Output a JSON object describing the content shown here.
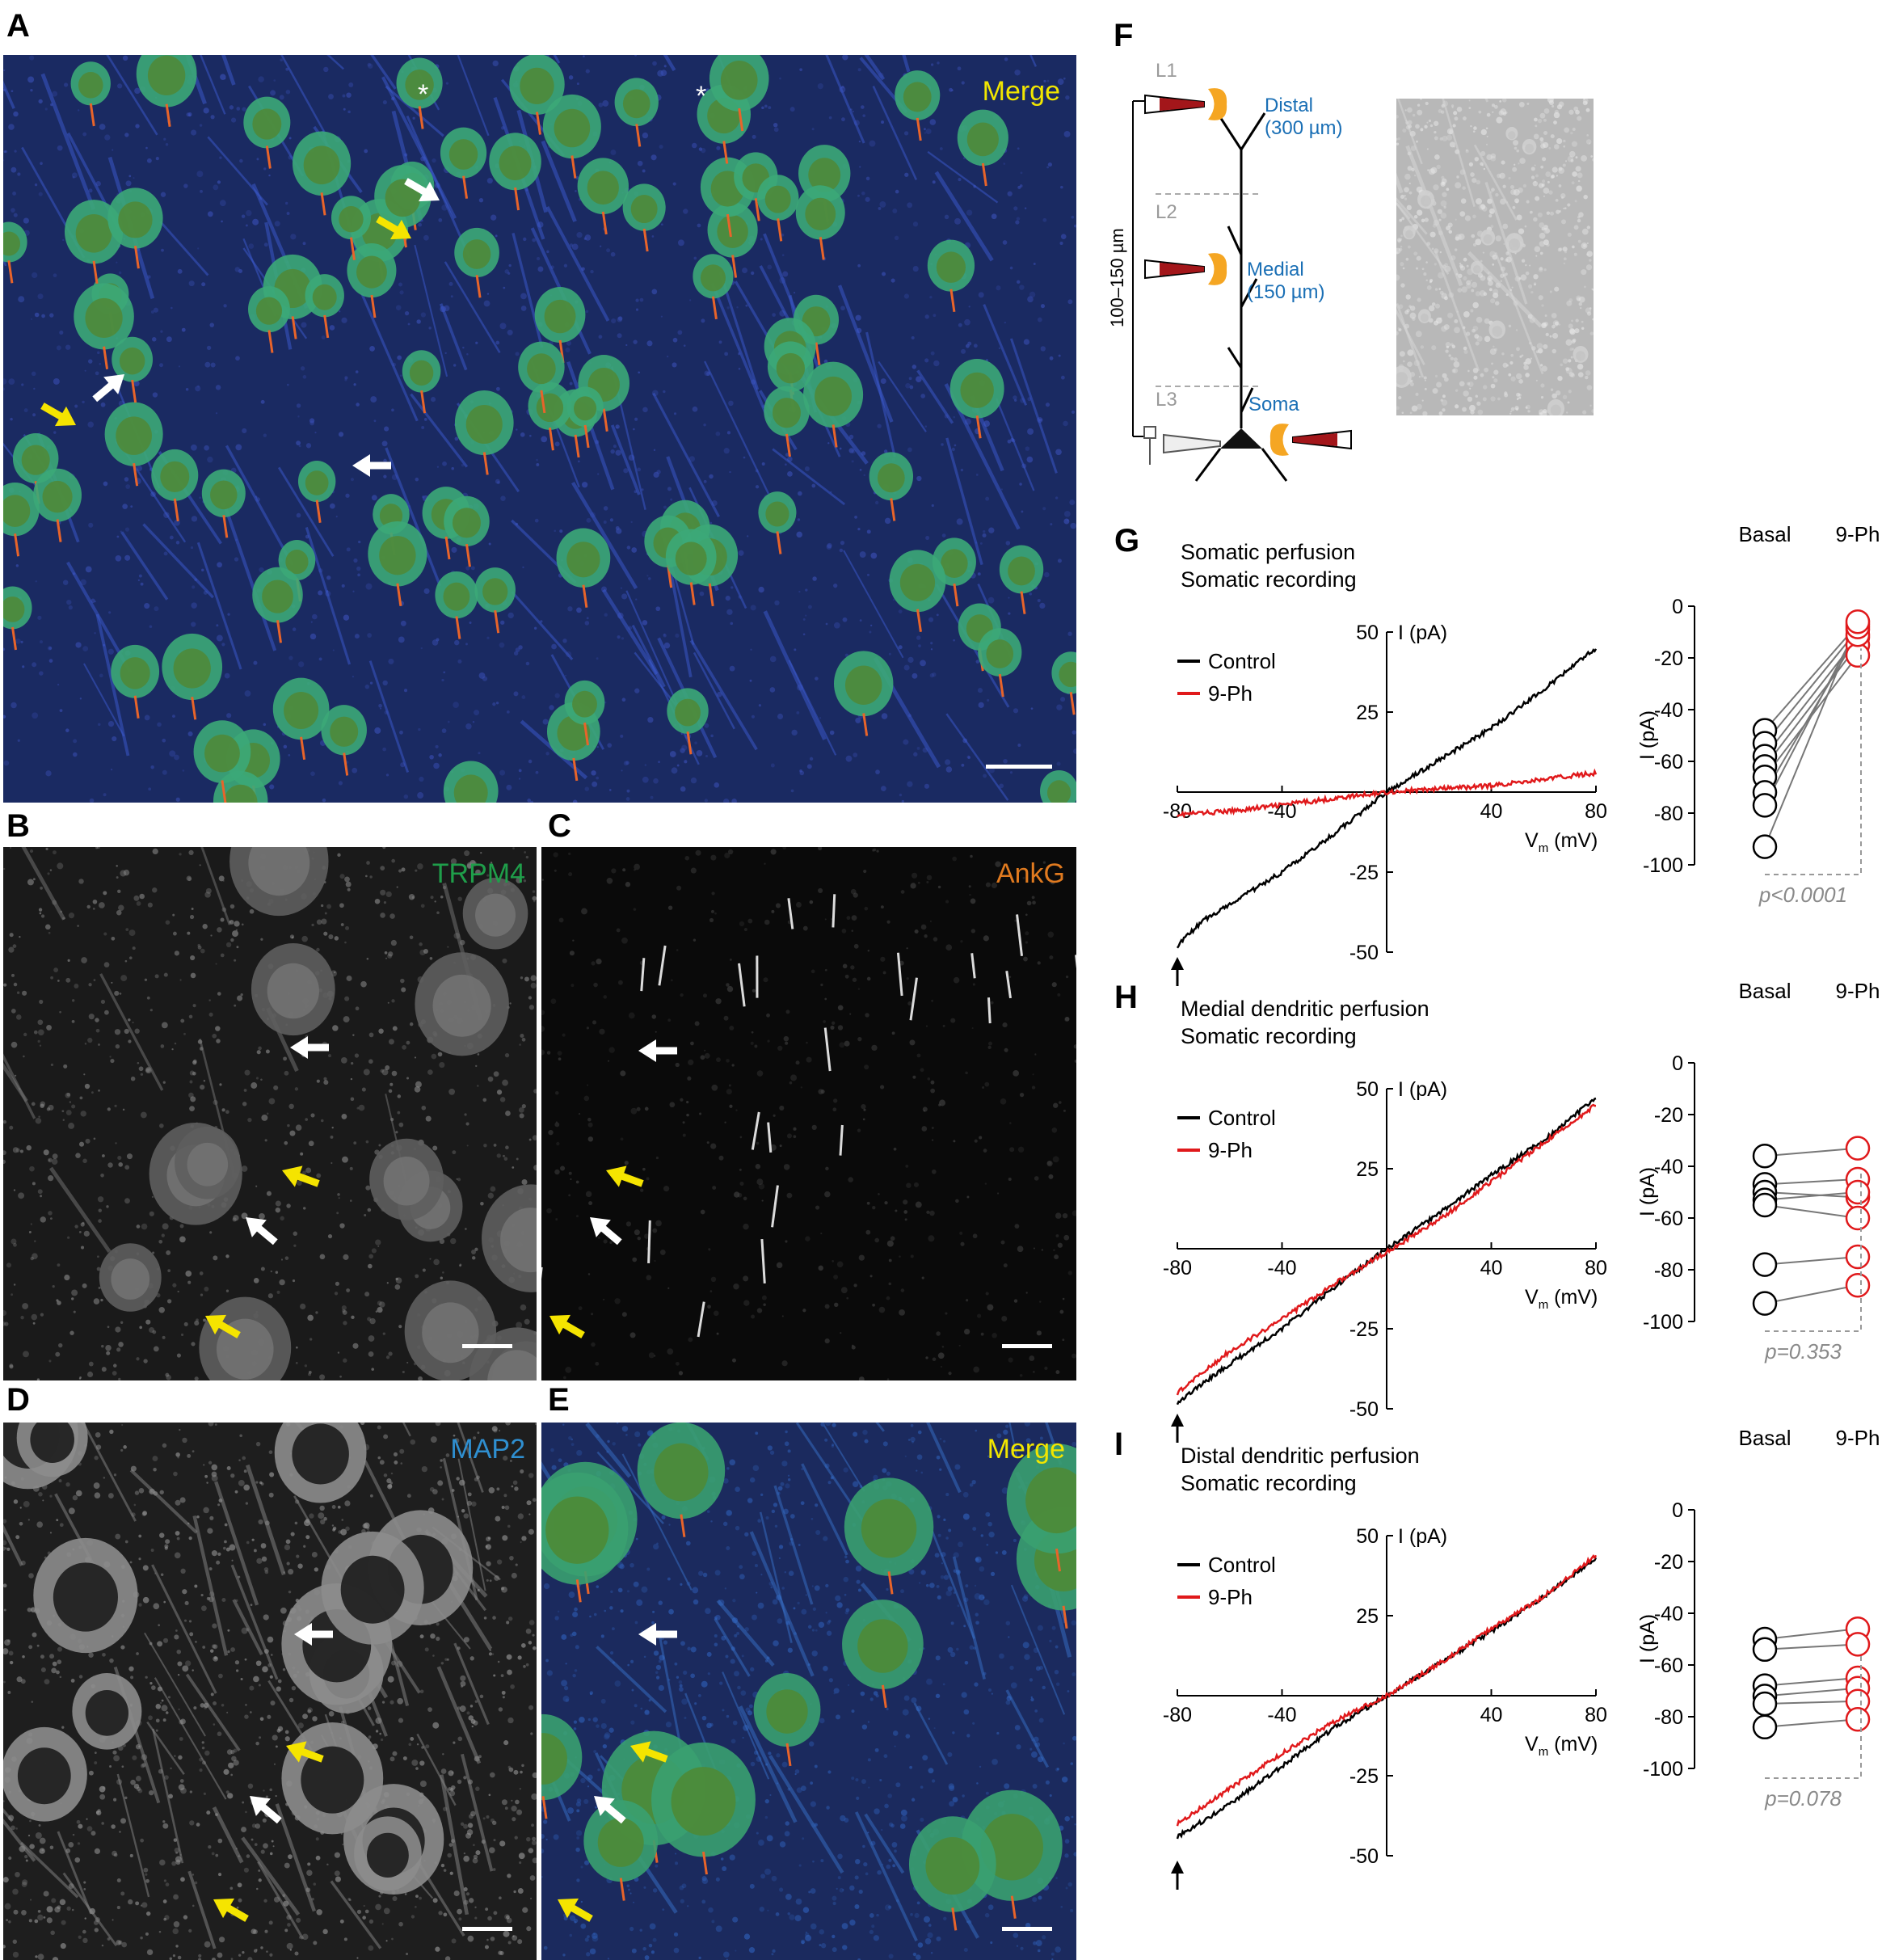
{
  "panels": {
    "A": {
      "letter": "A",
      "label": "Merge",
      "label_color": "#f2e600"
    },
    "B": {
      "letter": "B",
      "label": "TRPM4",
      "label_color": "#1f9e4a"
    },
    "C": {
      "letter": "C",
      "label": "AnkG",
      "label_color": "#e07a1f"
    },
    "D": {
      "letter": "D",
      "label": "MAP2",
      "label_color": "#2f8fd0"
    },
    "E": {
      "letter": "E",
      "label": "Merge",
      "label_color": "#f2e600"
    },
    "F": {
      "letter": "F",
      "layers": [
        "L1",
        "L2",
        "L3"
      ],
      "sites": [
        {
          "name": "Distal",
          "dist": "(300 µm)"
        },
        {
          "name": "Medial",
          "dist": "(150 µm)"
        },
        {
          "name": "Soma",
          "dist": ""
        }
      ],
      "depth_label": "100–150 µm",
      "site_color": "#1a6fb5"
    },
    "G": {
      "letter": "G",
      "title1": "Somatic perfusion",
      "title2": "Somatic recording",
      "legend": [
        "Control",
        "9-Ph"
      ],
      "xaxis_label": "V",
      "xaxis_sub": "m",
      "xaxis_unit": " (mV)",
      "yaxis_label": "I (pA)",
      "x_ticks": [
        "-80",
        "-40",
        "40",
        "80"
      ],
      "y_ticks": [
        "50",
        "25",
        "-25",
        "-50"
      ],
      "dot_axis_label": "I (pA)",
      "dot_ticks": [
        "0",
        "-20",
        "-40",
        "-60",
        "-80",
        "-100"
      ],
      "dot_groups": [
        "Basal",
        "9-Ph"
      ],
      "p_value": "p<0.0001"
    },
    "H": {
      "letter": "H",
      "title1": "Medial dendritic perfusion",
      "title2": "Somatic recording",
      "legend": [
        "Control",
        "9-Ph"
      ],
      "xaxis_label": "V",
      "xaxis_sub": "m",
      "xaxis_unit": " (mV)",
      "yaxis_label": "I (pA)",
      "x_ticks": [
        "-80",
        "-40",
        "40",
        "80"
      ],
      "y_ticks": [
        "50",
        "25",
        "-25",
        "-50"
      ],
      "dot_axis_label": "I (pA)",
      "dot_ticks": [
        "0",
        "-20",
        "-40",
        "-60",
        "-80",
        "-100"
      ],
      "dot_groups": [
        "Basal",
        "9-Ph"
      ],
      "p_value": "p=0.353"
    },
    "I": {
      "letter": "I",
      "title1": "Distal dendritic perfusion",
      "title2": "Somatic recording",
      "legend": [
        "Control",
        "9-Ph"
      ],
      "xaxis_label": "V",
      "xaxis_sub": "m",
      "xaxis_unit": " (mV)",
      "yaxis_label": "I (pA)",
      "x_ticks": [
        "-80",
        "-40",
        "40",
        "80"
      ],
      "y_ticks": [
        "50",
        "25",
        "-25",
        "-50"
      ],
      "dot_axis_label": "I (pA)",
      "dot_ticks": [
        "0",
        "-20",
        "-40",
        "-60",
        "-80",
        "-100"
      ],
      "dot_groups": [
        "Basal",
        "9-Ph"
      ],
      "p_value": "p=0.078"
    }
  },
  "colors": {
    "control": "#000000",
    "treatment": "#e0191b",
    "pval": "#8a8a8a"
  },
  "chart_data": [
    {
      "type": "line",
      "panel": "G",
      "xlim": [
        -80,
        80
      ],
      "ylim": [
        -50,
        50
      ],
      "series": [
        {
          "name": "Control",
          "x": [
            -80,
            -70,
            -60,
            -40,
            -20,
            0,
            20,
            40,
            60,
            80
          ],
          "y": [
            -48,
            -40,
            -35,
            -25,
            -13,
            0,
            10,
            20,
            32,
            45
          ]
        },
        {
          "name": "9-Ph",
          "x": [
            -80,
            -60,
            -40,
            -20,
            0,
            20,
            40,
            60,
            80
          ],
          "y": [
            -7,
            -6,
            -4,
            -2,
            0,
            1,
            2,
            4,
            6
          ]
        }
      ]
    },
    {
      "type": "scatter",
      "panel": "G",
      "ylim": [
        -100,
        0
      ],
      "categories": [
        "Basal",
        "9-Ph"
      ],
      "pairs": [
        [
          -48,
          -7
        ],
        [
          -53,
          -9
        ],
        [
          -58,
          -12
        ],
        [
          -62,
          -15
        ],
        [
          -66,
          -19
        ],
        [
          -72,
          -11
        ],
        [
          -77,
          -8
        ],
        [
          -93,
          -6
        ]
      ]
    },
    {
      "type": "line",
      "panel": "H",
      "xlim": [
        -80,
        80
      ],
      "ylim": [
        -50,
        50
      ],
      "series": [
        {
          "name": "Control",
          "x": [
            -80,
            -60,
            -40,
            -20,
            0,
            20,
            40,
            60,
            80
          ],
          "y": [
            -48,
            -36,
            -25,
            -12,
            0,
            11,
            23,
            34,
            47
          ]
        },
        {
          "name": "9-Ph",
          "x": [
            -80,
            -60,
            -40,
            -20,
            0,
            20,
            40,
            60,
            80
          ],
          "y": [
            -45,
            -32,
            -22,
            -11,
            -1,
            9,
            21,
            33,
            45
          ]
        }
      ]
    },
    {
      "type": "scatter",
      "panel": "H",
      "ylim": [
        -100,
        0
      ],
      "categories": [
        "Basal",
        "9-Ph"
      ],
      "pairs": [
        [
          -36,
          -33
        ],
        [
          -47,
          -45
        ],
        [
          -50,
          -52
        ],
        [
          -53,
          -50
        ],
        [
          -55,
          -60
        ],
        [
          -78,
          -75
        ],
        [
          -93,
          -86
        ]
      ]
    },
    {
      "type": "line",
      "panel": "I",
      "xlim": [
        -80,
        80
      ],
      "ylim": [
        -50,
        50
      ],
      "series": [
        {
          "name": "Control",
          "x": [
            -80,
            -60,
            -40,
            -20,
            0,
            20,
            40,
            60,
            80
          ],
          "y": [
            -44,
            -34,
            -22,
            -10,
            0,
            10,
            20,
            31,
            43
          ]
        },
        {
          "name": "9-Ph",
          "x": [
            -80,
            -60,
            -40,
            -20,
            0,
            20,
            40,
            60,
            80
          ],
          "y": [
            -40,
            -29,
            -18,
            -8,
            0,
            10,
            21,
            31,
            44
          ]
        }
      ]
    },
    {
      "type": "scatter",
      "panel": "I",
      "ylim": [
        -100,
        0
      ],
      "categories": [
        "Basal",
        "9-Ph"
      ],
      "pairs": [
        [
          -50,
          -46
        ],
        [
          -54,
          -52
        ],
        [
          -68,
          -65
        ],
        [
          -72,
          -69
        ],
        [
          -75,
          -74
        ],
        [
          -84,
          -81
        ]
      ]
    }
  ]
}
